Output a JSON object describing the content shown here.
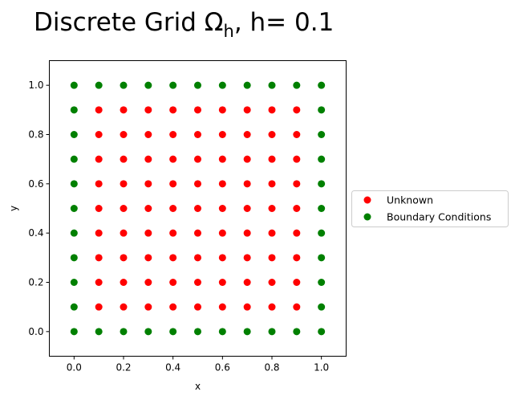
{
  "chart_data": {
    "type": "scatter",
    "title": {
      "prefix": "Discrete Grid Ω",
      "subscript": "h",
      "suffix": ",  h= 0.1"
    },
    "xlabel": "x",
    "ylabel": "y",
    "xlim": [
      -0.1,
      1.1
    ],
    "ylim": [
      -0.1,
      1.1
    ],
    "xticks": [
      "0.0",
      "0.2",
      "0.4",
      "0.6",
      "0.8",
      "1.0"
    ],
    "yticks": [
      "0.0",
      "0.2",
      "0.4",
      "0.6",
      "0.8",
      "1.0"
    ],
    "grid": false,
    "legend_position": "outside-right",
    "h": 0.1,
    "series": [
      {
        "name": "Unknown",
        "color": "#ff0000",
        "points": [
          [
            0.1,
            0.1
          ],
          [
            0.2,
            0.1
          ],
          [
            0.3,
            0.1
          ],
          [
            0.4,
            0.1
          ],
          [
            0.5,
            0.1
          ],
          [
            0.6,
            0.1
          ],
          [
            0.7,
            0.1
          ],
          [
            0.8,
            0.1
          ],
          [
            0.9,
            0.1
          ],
          [
            0.1,
            0.2
          ],
          [
            0.2,
            0.2
          ],
          [
            0.3,
            0.2
          ],
          [
            0.4,
            0.2
          ],
          [
            0.5,
            0.2
          ],
          [
            0.6,
            0.2
          ],
          [
            0.7,
            0.2
          ],
          [
            0.8,
            0.2
          ],
          [
            0.9,
            0.2
          ],
          [
            0.1,
            0.3
          ],
          [
            0.2,
            0.3
          ],
          [
            0.3,
            0.3
          ],
          [
            0.4,
            0.3
          ],
          [
            0.5,
            0.3
          ],
          [
            0.6,
            0.3
          ],
          [
            0.7,
            0.3
          ],
          [
            0.8,
            0.3
          ],
          [
            0.9,
            0.3
          ],
          [
            0.1,
            0.4
          ],
          [
            0.2,
            0.4
          ],
          [
            0.3,
            0.4
          ],
          [
            0.4,
            0.4
          ],
          [
            0.5,
            0.4
          ],
          [
            0.6,
            0.4
          ],
          [
            0.7,
            0.4
          ],
          [
            0.8,
            0.4
          ],
          [
            0.9,
            0.4
          ],
          [
            0.1,
            0.5
          ],
          [
            0.2,
            0.5
          ],
          [
            0.3,
            0.5
          ],
          [
            0.4,
            0.5
          ],
          [
            0.5,
            0.5
          ],
          [
            0.6,
            0.5
          ],
          [
            0.7,
            0.5
          ],
          [
            0.8,
            0.5
          ],
          [
            0.9,
            0.5
          ],
          [
            0.1,
            0.6
          ],
          [
            0.2,
            0.6
          ],
          [
            0.3,
            0.6
          ],
          [
            0.4,
            0.6
          ],
          [
            0.5,
            0.6
          ],
          [
            0.6,
            0.6
          ],
          [
            0.7,
            0.6
          ],
          [
            0.8,
            0.6
          ],
          [
            0.9,
            0.6
          ],
          [
            0.1,
            0.7
          ],
          [
            0.2,
            0.7
          ],
          [
            0.3,
            0.7
          ],
          [
            0.4,
            0.7
          ],
          [
            0.5,
            0.7
          ],
          [
            0.6,
            0.7
          ],
          [
            0.7,
            0.7
          ],
          [
            0.8,
            0.7
          ],
          [
            0.9,
            0.7
          ],
          [
            0.1,
            0.8
          ],
          [
            0.2,
            0.8
          ],
          [
            0.3,
            0.8
          ],
          [
            0.4,
            0.8
          ],
          [
            0.5,
            0.8
          ],
          [
            0.6,
            0.8
          ],
          [
            0.7,
            0.8
          ],
          [
            0.8,
            0.8
          ],
          [
            0.9,
            0.8
          ],
          [
            0.1,
            0.9
          ],
          [
            0.2,
            0.9
          ],
          [
            0.3,
            0.9
          ],
          [
            0.4,
            0.9
          ],
          [
            0.5,
            0.9
          ],
          [
            0.6,
            0.9
          ],
          [
            0.7,
            0.9
          ],
          [
            0.8,
            0.9
          ],
          [
            0.9,
            0.9
          ]
        ]
      },
      {
        "name": "Boundary Conditions",
        "color": "#008000",
        "points": [
          [
            0.0,
            0.0
          ],
          [
            0.1,
            0.0
          ],
          [
            0.2,
            0.0
          ],
          [
            0.3,
            0.0
          ],
          [
            0.4,
            0.0
          ],
          [
            0.5,
            0.0
          ],
          [
            0.6,
            0.0
          ],
          [
            0.7,
            0.0
          ],
          [
            0.8,
            0.0
          ],
          [
            0.9,
            0.0
          ],
          [
            1.0,
            0.0
          ],
          [
            0.0,
            1.0
          ],
          [
            0.1,
            1.0
          ],
          [
            0.2,
            1.0
          ],
          [
            0.3,
            1.0
          ],
          [
            0.4,
            1.0
          ],
          [
            0.5,
            1.0
          ],
          [
            0.6,
            1.0
          ],
          [
            0.7,
            1.0
          ],
          [
            0.8,
            1.0
          ],
          [
            0.9,
            1.0
          ],
          [
            1.0,
            1.0
          ],
          [
            0.0,
            0.1
          ],
          [
            0.0,
            0.2
          ],
          [
            0.0,
            0.3
          ],
          [
            0.0,
            0.4
          ],
          [
            0.0,
            0.5
          ],
          [
            0.0,
            0.6
          ],
          [
            0.0,
            0.7
          ],
          [
            0.0,
            0.8
          ],
          [
            0.0,
            0.9
          ],
          [
            1.0,
            0.1
          ],
          [
            1.0,
            0.2
          ],
          [
            1.0,
            0.3
          ],
          [
            1.0,
            0.4
          ],
          [
            1.0,
            0.5
          ],
          [
            1.0,
            0.6
          ],
          [
            1.0,
            0.7
          ],
          [
            1.0,
            0.8
          ],
          [
            1.0,
            0.9
          ]
        ]
      }
    ]
  }
}
